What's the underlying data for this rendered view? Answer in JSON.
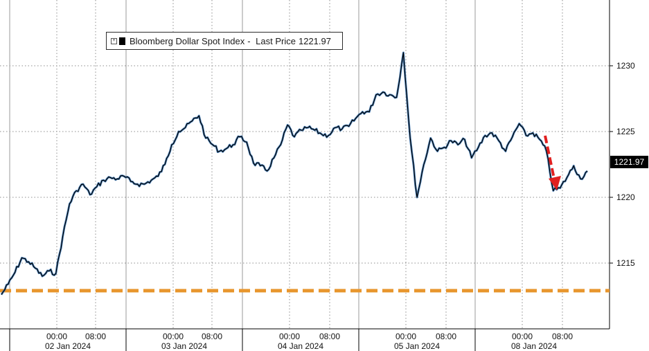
{
  "legend": {
    "name": "Bloomberg Dollar Spot Index",
    "separator": "-",
    "price_label": "Last Price",
    "price_value": "1221.97"
  },
  "last_price_tag": "1221.97",
  "colors": {
    "price_line": "#000000",
    "price_highlight": "#2f6fb0",
    "reference_line": "#e8962e",
    "arrow": "#e02020",
    "grid": "#8c8c8c"
  },
  "chart_data": {
    "type": "line",
    "ylim": [
      1210,
      1235
    ],
    "yticks": [
      1215,
      1220,
      1225,
      1230
    ],
    "grid": true,
    "legend_position": "top-left",
    "x_time_labels": [
      "00:00",
      "08:00",
      "00:00",
      "08:00",
      "00:00",
      "08:00",
      "00:00",
      "08:00",
      "00:00",
      "08:00"
    ],
    "x_date_labels": [
      "02 Jan 2024",
      "03 Jan 2024",
      "04 Jan 2024",
      "05 Jan 2024",
      "08 Jan 2024"
    ],
    "reference_level": 1212.9,
    "series": [
      {
        "name": "Bloomberg Dollar Spot Index",
        "values": [
          1212.6,
          1213.4,
          1214.3,
          1215.4,
          1215.1,
          1214.6,
          1214.0,
          1214.4,
          1214.2,
          1217.0,
          1219.5,
          1220.5,
          1221.0,
          1220.2,
          1220.8,
          1221.3,
          1221.5,
          1221.4,
          1221.6,
          1221.2,
          1221.0,
          1221.0,
          1221.3,
          1221.6,
          1222.5,
          1224.0,
          1225.0,
          1225.3,
          1225.8,
          1226.2,
          1224.5,
          1224.0,
          1223.5,
          1223.7,
          1224.0,
          1224.6,
          1224.2,
          1222.6,
          1222.4,
          1222.0,
          1223.0,
          1224.0,
          1225.5,
          1224.6,
          1225.1,
          1225.3,
          1225.1,
          1224.8,
          1224.7,
          1225.3,
          1225.2,
          1225.4,
          1226.0,
          1226.5,
          1226.5,
          1227.8,
          1228.0,
          1227.8,
          1227.6,
          1231.0,
          1224.5,
          1220.0,
          1222.5,
          1224.5,
          1223.5,
          1223.8,
          1224.3,
          1224.0,
          1224.4,
          1223.0,
          1223.8,
          1224.7,
          1224.9,
          1224.3,
          1223.5,
          1224.6,
          1225.6,
          1224.7,
          1224.9,
          1224.4,
          1223.5,
          1220.5,
          1220.7,
          1221.5,
          1222.4,
          1221.4,
          1222.0
        ]
      }
    ],
    "annotations": [
      "dashed orange horizontal reference line",
      "dashed red downward arrow near the latest decline"
    ]
  }
}
